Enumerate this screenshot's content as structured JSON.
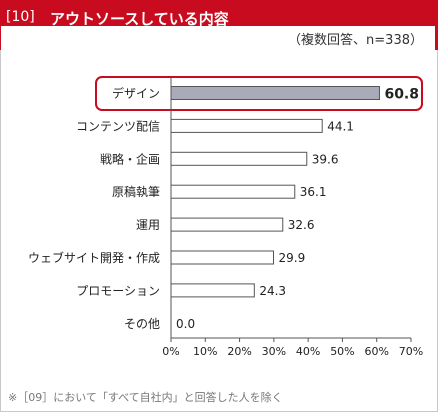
{
  "header": {
    "number": "[10]",
    "title": "アウトソースしている内容",
    "subtitle": "（複数回答、n=338）",
    "background_color": "#c80b1e"
  },
  "footnote": "※［09］において「すべて自社内」と回答した人を除く",
  "chart_data": {
    "type": "bar",
    "orientation": "horizontal",
    "categories": [
      "デザイン",
      "コンテンツ配信",
      "戦略・企画",
      "原稿執筆",
      "運用",
      "ウェブサイト開発・作成",
      "プロモーション",
      "その他"
    ],
    "values": [
      60.8,
      44.1,
      39.6,
      36.1,
      32.6,
      29.9,
      24.3,
      0.0
    ],
    "value_labels": [
      "60.8",
      "44.1",
      "39.6",
      "36.1",
      "32.6",
      "29.9",
      "24.3",
      "0.0"
    ],
    "x_ticks": [
      "0%",
      "10%",
      "20%",
      "30%",
      "40%",
      "50%",
      "60%",
      "70%"
    ],
    "xlim": [
      0,
      70
    ],
    "highlight_index": 0,
    "highlight_color": "#c80b1e",
    "highlight_fill": "#a9abb8",
    "bar_fill": "#ffffff",
    "bar_stroke": "#555555",
    "grid": false
  }
}
